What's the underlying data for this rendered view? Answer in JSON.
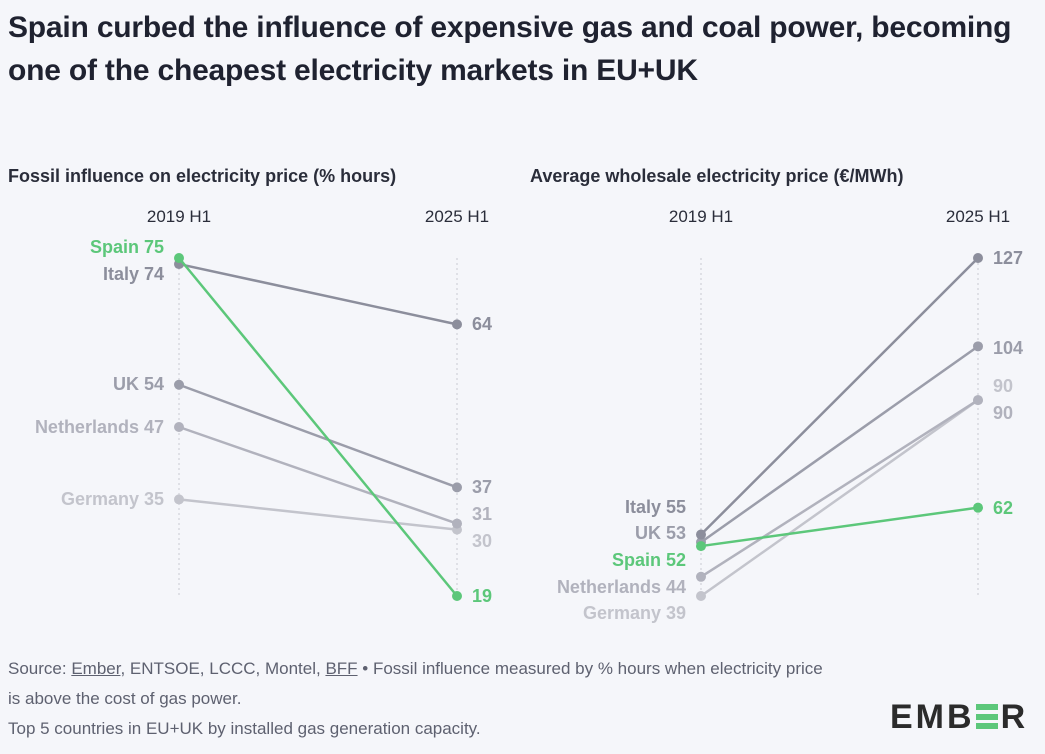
{
  "title": "Spain curbed the influence of expensive gas and coal power, becoming one of the cheapest electricity markets in EU+UK",
  "footer": {
    "source_prefix": "Source: ",
    "link_ember": "Ember",
    "sources_mid": ", ENTSOE, LCCC, Montel, ",
    "link_bff": "BFF",
    "note1": " • Fossil influence measured by % hours when electricity price is above the cost of gas power.",
    "note2": "Top 5 countries in EU+UK by installed gas generation capacity."
  },
  "logo": "EMBER",
  "colors": {
    "Spain": "#5cc77a",
    "Italy": "#8c8e9c",
    "UK": "#9b9daa",
    "Netherlands": "#b1b2bd",
    "Germany": "#c3c4cc",
    "background": "#f5f6fa"
  },
  "chart_data": [
    {
      "type": "slope",
      "title": "Fossil influence on electricity price (% hours)",
      "categories": [
        "2019 H1",
        "2025 H1"
      ],
      "series": [
        {
          "name": "Spain",
          "values": [
            75,
            19
          ]
        },
        {
          "name": "Italy",
          "values": [
            74,
            64
          ]
        },
        {
          "name": "UK",
          "values": [
            54,
            37
          ]
        },
        {
          "name": "Netherlands",
          "values": [
            47,
            31
          ]
        },
        {
          "name": "Germany",
          "values": [
            35,
            30
          ]
        }
      ],
      "ylim": [
        19,
        75
      ]
    },
    {
      "type": "slope",
      "title": "Average wholesale electricity price (€/MWh)",
      "categories": [
        "2019 H1",
        "2025 H1"
      ],
      "series": [
        {
          "name": "Spain",
          "values": [
            52,
            62
          ]
        },
        {
          "name": "Italy",
          "values": [
            55,
            127
          ]
        },
        {
          "name": "UK",
          "values": [
            53,
            104
          ]
        },
        {
          "name": "Netherlands",
          "values": [
            44,
            90
          ]
        },
        {
          "name": "Germany",
          "values": [
            39,
            90
          ]
        }
      ],
      "ylim": [
        39,
        127
      ]
    }
  ]
}
